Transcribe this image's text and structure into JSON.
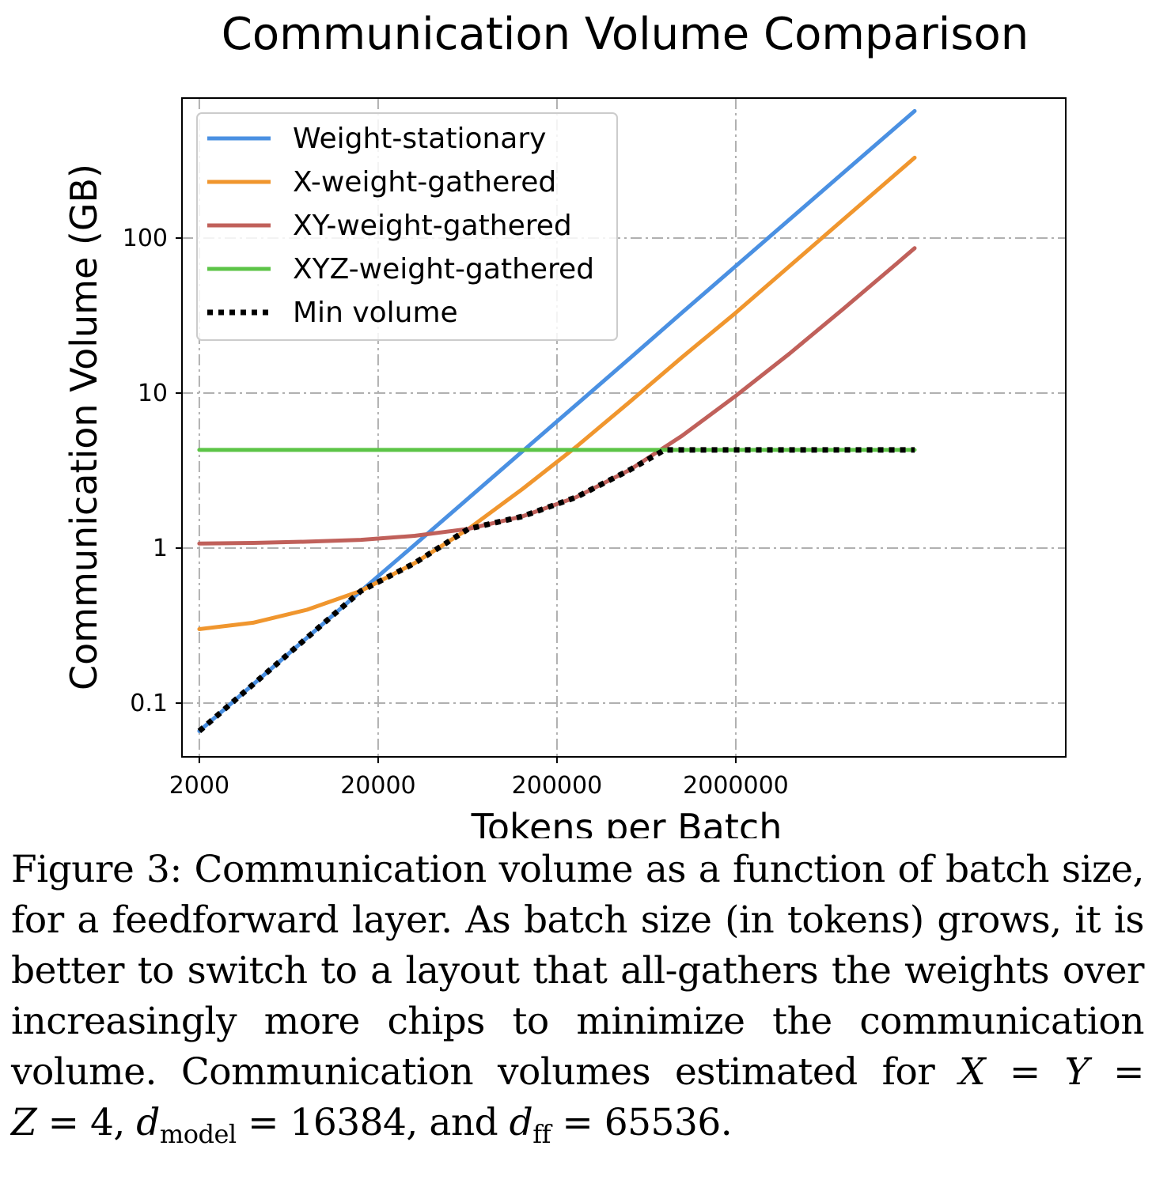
{
  "chart_data": {
    "type": "line",
    "title": "Communication Volume Comparison",
    "xlabel": "Tokens per Batch",
    "ylabel": "Communication Volume (GB)",
    "xscale": "log",
    "yscale": "log",
    "xlim": [
      1600,
      140000000
    ],
    "ylim": [
      0.045,
      800
    ],
    "xticks": [
      2000,
      20000,
      200000,
      2000000
    ],
    "xtick_labels": [
      "2000",
      "20000",
      "200000",
      "2000000"
    ],
    "yticks": [
      0.1,
      1,
      10,
      100
    ],
    "ytick_labels": [
      "0.1",
      "1",
      "10",
      "100"
    ],
    "grid": true,
    "legend_position": "top-left",
    "series": [
      {
        "name": "Weight-stationary",
        "color": "#4a90e2",
        "style": "solid",
        "x": [
          2000,
          4000,
          8000,
          16000,
          32000,
          64000,
          128000,
          256000,
          512000,
          1000000,
          2000000,
          4000000,
          8000000,
          16000000,
          20000000
        ],
        "y": [
          0.066,
          0.132,
          0.264,
          0.528,
          1.05,
          2.1,
          4.2,
          8.4,
          16.8,
          33,
          66,
          132,
          264,
          528,
          660
        ]
      },
      {
        "name": "X-weight-gathered",
        "color": "#f0962e",
        "style": "solid",
        "x": [
          2000,
          4000,
          8000,
          16000,
          32000,
          64000,
          128000,
          256000,
          512000,
          1000000,
          2000000,
          4000000,
          8000000,
          16000000,
          20000000
        ],
        "y": [
          0.3,
          0.33,
          0.4,
          0.53,
          0.8,
          1.33,
          2.4,
          4.5,
          8.8,
          17,
          33,
          66,
          132,
          264,
          330
        ]
      },
      {
        "name": "XY-weight-gathered",
        "color": "#c0605a",
        "style": "solid",
        "x": [
          2000,
          4000,
          8000,
          16000,
          32000,
          64000,
          128000,
          256000,
          512000,
          1000000,
          2000000,
          4000000,
          8000000,
          16000000,
          20000000
        ],
        "y": [
          1.07,
          1.08,
          1.1,
          1.13,
          1.2,
          1.33,
          1.6,
          2.13,
          3.2,
          5.3,
          9.6,
          18,
          35,
          69,
          86
        ]
      },
      {
        "name": "XYZ-weight-gathered",
        "color": "#5cc447",
        "style": "solid",
        "x": [
          2000,
          20000000
        ],
        "y": [
          4.3,
          4.3
        ]
      },
      {
        "name": "Min volume",
        "color": "#000000",
        "style": "dotted",
        "x": [
          2000,
          4000,
          8000,
          16000,
          32000,
          64000,
          128000,
          256000,
          512000,
          800000,
          1000000,
          2000000,
          4000000,
          8000000,
          16000000,
          20000000
        ],
        "y": [
          0.066,
          0.132,
          0.264,
          0.528,
          0.8,
          1.33,
          1.6,
          2.13,
          3.2,
          4.3,
          4.3,
          4.3,
          4.3,
          4.3,
          4.3,
          4.3
        ]
      }
    ]
  },
  "caption": {
    "lines": [
      "Figure 3: Communication volume as a function of batch size,",
      "for a feedforward layer. As batch size (in tokens) grows, it is",
      "better to switch to a layout that all-gathers the weights over",
      "increasingly more chips to minimize the communication"
    ],
    "line5_prefix": "volume. Communication volumes estimated for",
    "eq_x": "X",
    "eq_y": "Y",
    "eq_z": "Z",
    "eq_sign": "=",
    "eq_value": "4,",
    "d_symbol": "d",
    "sub_model": "model",
    "model_value": "16384, and",
    "sub_ff": "ff",
    "ff_value": "65536."
  }
}
